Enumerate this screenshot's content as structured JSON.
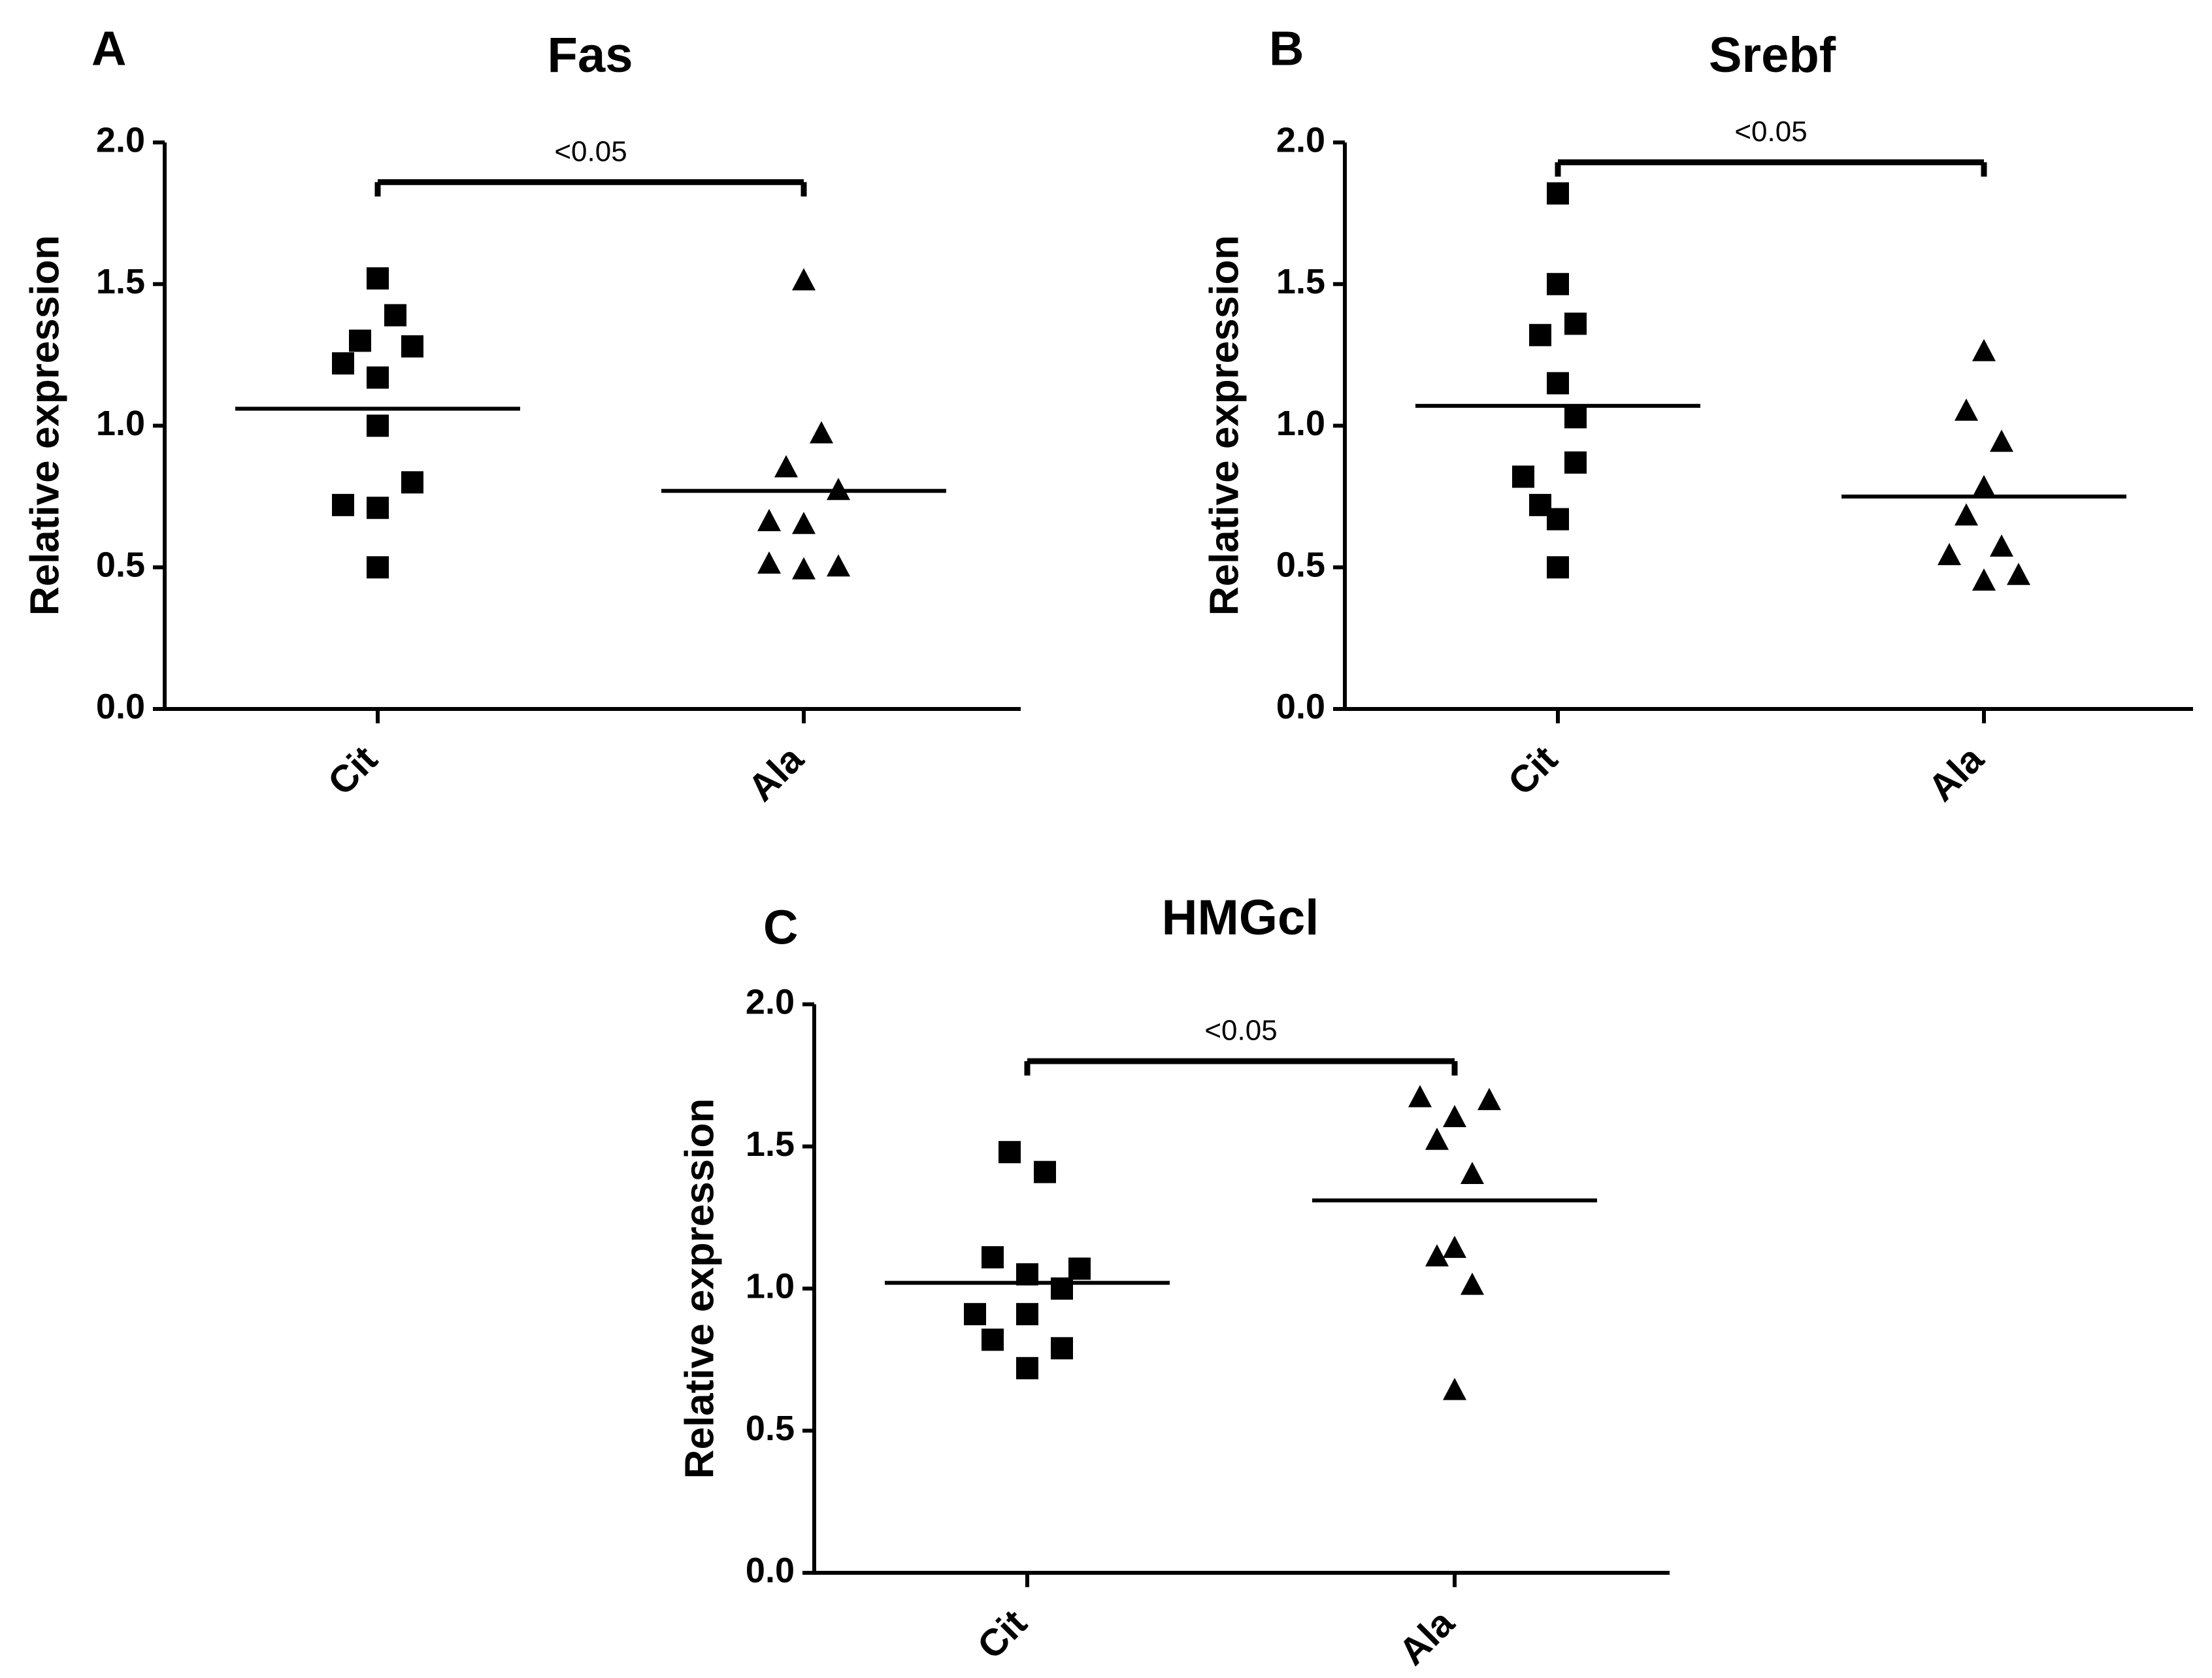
{
  "chart_data": [
    {
      "panel": "A",
      "type": "scatter",
      "title": "Fas",
      "ylabel": "Relative expression",
      "xlabel": "",
      "ylim": [
        0,
        2.0
      ],
      "yticks": [
        "0.0",
        "0.5",
        "1.0",
        "1.5",
        "2.0"
      ],
      "categories": [
        "Cit",
        "Ala"
      ],
      "series": [
        {
          "name": "Cit",
          "marker": "square",
          "values": [
            1.52,
            1.39,
            1.3,
            1.28,
            1.22,
            1.17,
            1.0,
            0.8,
            0.72,
            0.71,
            0.5
          ],
          "mean": 1.06
        },
        {
          "name": "Ala",
          "marker": "triangle",
          "values": [
            1.51,
            0.97,
            0.85,
            0.77,
            0.66,
            0.65,
            0.51,
            0.5,
            0.49
          ],
          "mean": 0.77
        }
      ],
      "significance": {
        "label": "<0.05",
        "y": 1.86,
        "pair": [
          "Cit",
          "Ala"
        ]
      }
    },
    {
      "panel": "B",
      "type": "scatter",
      "title": "Srebf",
      "ylabel": "Relative expression",
      "xlabel": "",
      "ylim": [
        0,
        2.0
      ],
      "yticks": [
        "0.0",
        "0.5",
        "1.0",
        "1.5",
        "2.0"
      ],
      "categories": [
        "Cit",
        "Ala"
      ],
      "series": [
        {
          "name": "Cit",
          "marker": "square",
          "values": [
            1.82,
            1.5,
            1.36,
            1.32,
            1.15,
            1.03,
            0.87,
            0.82,
            0.72,
            0.67,
            0.5
          ],
          "mean": 1.07
        },
        {
          "name": "Ala",
          "marker": "triangle",
          "values": [
            1.26,
            1.05,
            0.94,
            0.78,
            0.68,
            0.57,
            0.54,
            0.47,
            0.45
          ],
          "mean": 0.75
        }
      ],
      "significance": {
        "label": "<0.05",
        "y": 1.93,
        "pair": [
          "Cit",
          "Ala"
        ]
      }
    },
    {
      "panel": "C",
      "type": "scatter",
      "title": "HMGcl",
      "ylabel": "Relative expression",
      "xlabel": "",
      "ylim": [
        0,
        2.0
      ],
      "yticks": [
        "0.0",
        "0.5",
        "1.0",
        "1.5",
        "2.0"
      ],
      "categories": [
        "Cit",
        "Ala"
      ],
      "series": [
        {
          "name": "Cit",
          "marker": "square",
          "values": [
            1.48,
            1.41,
            1.11,
            1.07,
            1.05,
            1.0,
            0.91,
            0.91,
            0.82,
            0.79,
            0.72
          ],
          "mean": 1.02
        },
        {
          "name": "Ala",
          "marker": "triangle",
          "values": [
            1.67,
            1.66,
            1.6,
            1.52,
            1.4,
            1.14,
            1.11,
            1.01,
            0.64
          ],
          "mean": 1.31
        }
      ],
      "significance": {
        "label": "<0.05",
        "y": 1.8,
        "pair": [
          "Cit",
          "Ala"
        ]
      }
    }
  ]
}
